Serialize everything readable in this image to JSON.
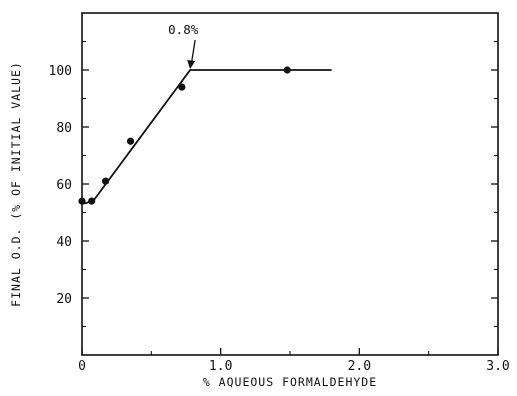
{
  "chart_data": {
    "type": "scatter",
    "xlabel": "% AQUEOUS FORMALDEHYDE",
    "ylabel": "FINAL O.D. (% OF INITIAL VALUE)",
    "xlim": [
      0,
      3.0
    ],
    "ylim": [
      0,
      120
    ],
    "x_ticks": [
      0,
      1.0,
      2.0,
      3.0
    ],
    "x_tick_labels": [
      "0",
      "1.0",
      "2.0",
      "3.0"
    ],
    "y_ticks": [
      20,
      40,
      60,
      80,
      100
    ],
    "y_tick_labels": [
      "20",
      "40",
      "60",
      "80",
      "100"
    ],
    "grid": false,
    "points": [
      {
        "x": 0.0,
        "y": 54
      },
      {
        "x": 0.07,
        "y": 54
      },
      {
        "x": 0.17,
        "y": 61
      },
      {
        "x": 0.35,
        "y": 75
      },
      {
        "x": 0.72,
        "y": 94
      },
      {
        "x": 1.48,
        "y": 100
      }
    ],
    "fit_line": [
      {
        "x": 0.0,
        "y": 53
      },
      {
        "x": 0.08,
        "y": 54
      },
      {
        "x": 0.78,
        "y": 100
      },
      {
        "x": 1.8,
        "y": 100
      }
    ],
    "annotation": {
      "text": "0.8%",
      "x": 0.78,
      "y": 100
    }
  }
}
